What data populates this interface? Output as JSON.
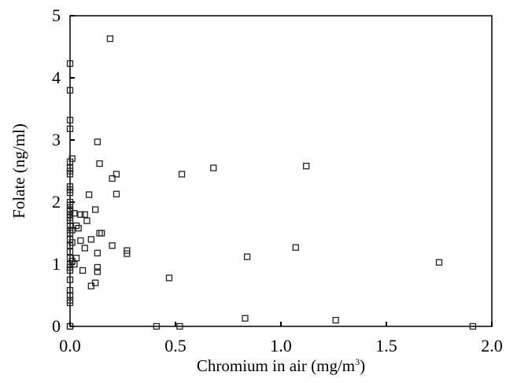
{
  "chart_data": {
    "type": "scatter",
    "title": "",
    "xlabel": "Chromium in air (mg/m",
    "xlabel_sup": "3",
    "xlabel_close": ")",
    "ylabel": "Folate (ng/ml)",
    "xlim": [
      0,
      2.0
    ],
    "ylim": [
      0,
      5
    ],
    "x_ticks": [
      "0.0",
      "0.5",
      "1.0",
      "1.5",
      "2.0"
    ],
    "y_ticks": [
      "0",
      "1",
      "2",
      "3",
      "4",
      "5"
    ],
    "grid": false,
    "legend": "none",
    "marker": "open-square",
    "series": [
      {
        "x": [
          0.0,
          0.0,
          0.0,
          0.0,
          0.0,
          0.0,
          0.0,
          0.0,
          0.0,
          0.0,
          0.0,
          0.0,
          0.0,
          0.0,
          0.0,
          0.0,
          0.0,
          0.0,
          0.0,
          0.0,
          0.0,
          0.0,
          0.0,
          0.0,
          0.0,
          0.0,
          0.0,
          0.0,
          0.0,
          0.0,
          0.0,
          0.0,
          0.0,
          0.0,
          0.0,
          0.01,
          0.01,
          0.01,
          0.01,
          0.02,
          0.02,
          0.03,
          0.03,
          0.04,
          0.05,
          0.05,
          0.06,
          0.07,
          0.07,
          0.08,
          0.09,
          0.1,
          0.1,
          0.12,
          0.12,
          0.13,
          0.13,
          0.13,
          0.13,
          0.14,
          0.14,
          0.15,
          0.19,
          0.2,
          0.2,
          0.22,
          0.22,
          0.27,
          0.27,
          0.41,
          0.47,
          0.52,
          0.53,
          0.68,
          0.83,
          0.84,
          1.07,
          1.12,
          1.26,
          1.75,
          1.91
        ],
        "y": [
          4.23,
          3.8,
          3.32,
          3.18,
          2.65,
          2.55,
          2.5,
          2.45,
          2.25,
          2.2,
          2.15,
          2.0,
          1.95,
          1.88,
          1.85,
          1.75,
          1.7,
          1.62,
          1.55,
          1.5,
          1.4,
          1.3,
          1.2,
          1.1,
          1.0,
          0.95,
          0.9,
          0.75,
          0.58,
          0.5,
          0.42,
          0.38,
          0.0,
          0.0,
          1.8,
          2.7,
          1.55,
          1.35,
          1.05,
          1.0,
          1.82,
          1.62,
          1.1,
          1.58,
          1.8,
          1.38,
          0.9,
          1.8,
          1.26,
          1.7,
          2.12,
          1.4,
          0.65,
          1.88,
          0.7,
          2.97,
          0.95,
          0.88,
          1.18,
          2.62,
          1.5,
          1.5,
          4.63,
          2.38,
          1.3,
          2.45,
          2.13,
          1.17,
          1.22,
          0.0,
          0.78,
          0.0,
          2.45,
          2.55,
          0.13,
          1.12,
          1.27,
          2.58,
          0.1,
          1.03,
          0.0
        ]
      }
    ]
  }
}
